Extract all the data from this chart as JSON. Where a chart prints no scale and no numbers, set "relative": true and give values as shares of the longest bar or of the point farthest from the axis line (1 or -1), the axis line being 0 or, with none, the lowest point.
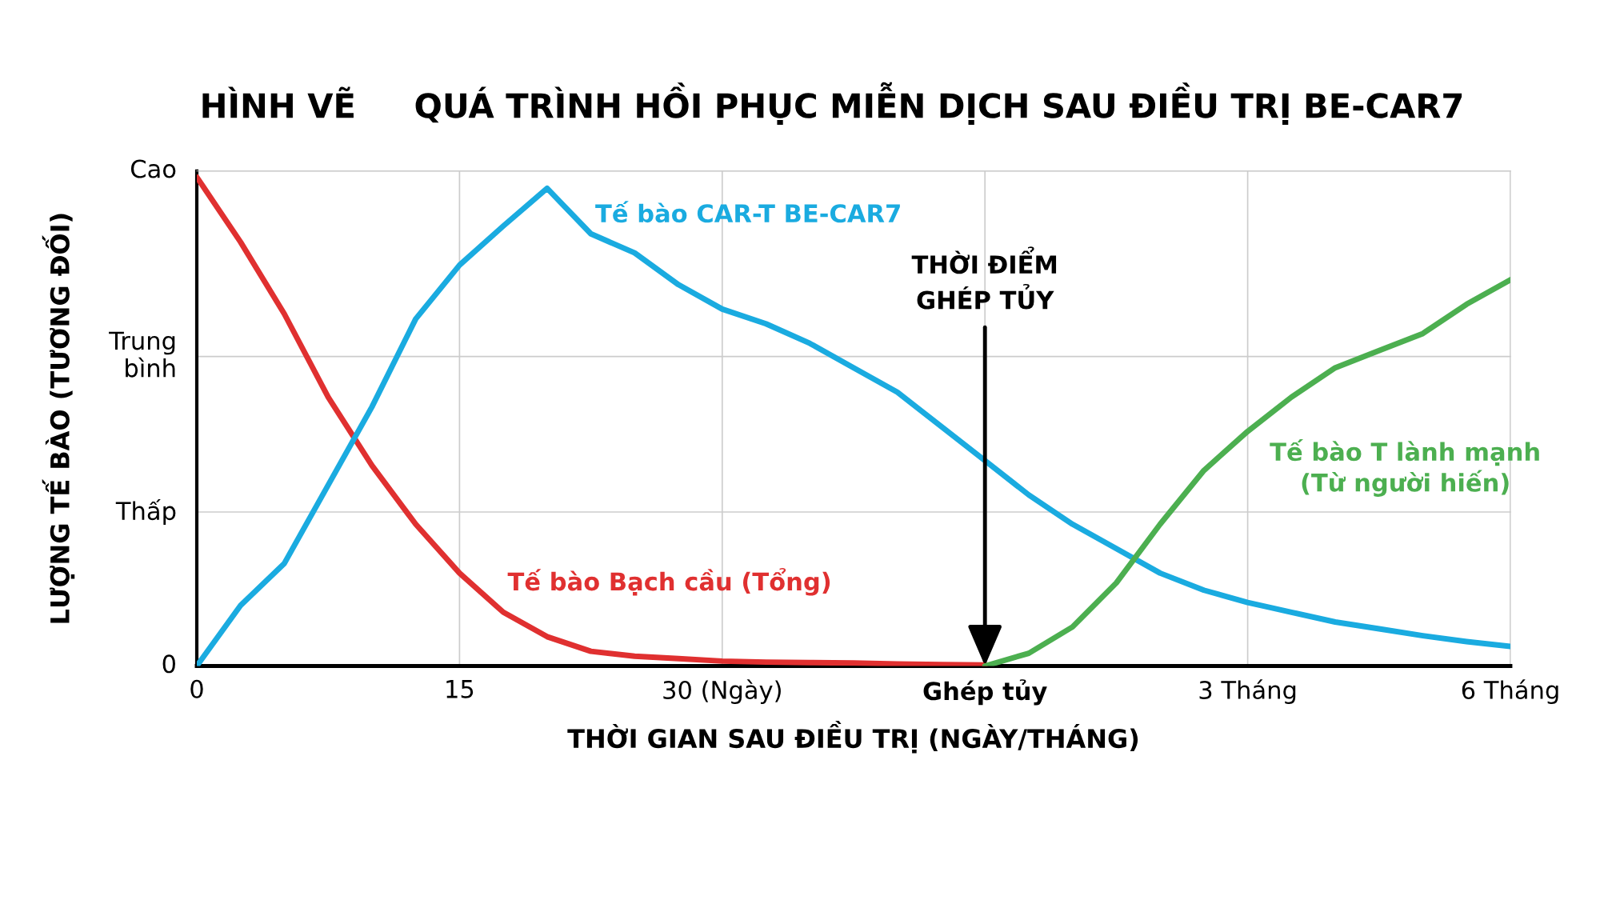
{
  "chart_data": {
    "type": "line",
    "relative": true,
    "title": "HÌNH VẼ     QUÁ TRÌNH HỒI PHỤC MIỄN DỊCH SAU ĐIỀU TRỊ BE-CAR7",
    "xlabel": "THỜI GIAN SAU ĐIỀU TRỊ (NGÀY/THÁNG)",
    "ylabel": "LƯỢNG TẾ BÀO (TƯƠNG ĐỐI)",
    "categories": [
      "0",
      null,
      null,
      null,
      null,
      null,
      "15",
      null,
      null,
      null,
      null,
      null,
      "30 (Ngày)",
      null,
      null,
      null,
      null,
      null,
      "Ghép tủy",
      null,
      null,
      null,
      null,
      null,
      "3 Tháng",
      null,
      null,
      null,
      null,
      null,
      "6 Tháng"
    ],
    "grid": "x",
    "legend": false,
    "marker": "none",
    "line_style": "solid",
    "ref_lines": [
      {
        "axis": "y",
        "value": 0.315,
        "label": "Thấp",
        "color": "#cccccc"
      },
      {
        "axis": "y",
        "value": 0.633,
        "label": "Trung\nbình",
        "color": "#cccccc"
      },
      {
        "axis": "y",
        "value": 1.0125,
        "label": "Cao",
        "color": "#cccccc"
      }
    ],
    "series": [
      {
        "name": "Tế bào Bạch cầu (Tổng)",
        "color": "#e03030",
        "values": [
          1.0,
          0.867,
          0.72,
          0.55,
          0.41,
          0.29,
          0.19,
          0.11,
          0.06,
          0.03,
          0.02,
          0.015,
          0.01,
          0.008,
          0.007,
          0.006,
          0.004,
          0.003,
          0.002,
          null,
          null,
          null,
          null,
          null,
          null,
          null,
          null,
          null,
          null,
          null,
          null
        ]
      },
      {
        "name": "Tế bào CAR-T BE-CAR7",
        "color": "#1aabe0",
        "values": [
          0,
          0.124,
          0.21,
          0.37,
          0.53,
          0.71,
          0.82,
          0.9,
          0.977,
          0.884,
          0.845,
          0.78,
          0.73,
          0.7,
          0.66,
          0.61,
          0.56,
          0.49,
          0.42,
          0.35,
          0.29,
          0.24,
          0.19,
          0.155,
          0.13,
          0.11,
          0.09,
          0.076,
          0.062,
          0.05,
          0.04
        ]
      },
      {
        "name": "Tế bào T lành mạnh\n(Từ người hiến)",
        "color": "#4caf50",
        "values": [
          null,
          null,
          null,
          null,
          null,
          null,
          null,
          null,
          null,
          null,
          null,
          null,
          null,
          null,
          null,
          null,
          null,
          null,
          0,
          0.026,
          0.08,
          0.17,
          0.29,
          0.4,
          0.48,
          0.55,
          0.61,
          0.645,
          0.68,
          0.74,
          0.79
        ]
      }
    ],
    "annotations": [
      {
        "text": "THỜI ĐIỂM\nGHÉP TỦY",
        "x": "Ghép tủy",
        "y": 0
      },
      "0"
    ]
  }
}
